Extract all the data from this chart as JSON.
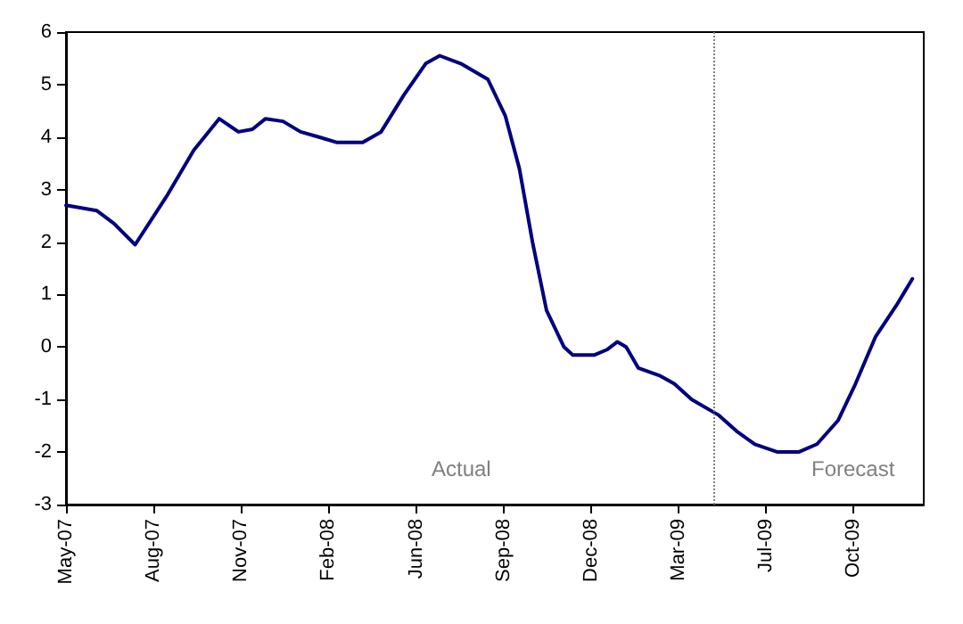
{
  "chart_data": {
    "type": "line",
    "x": [
      "2007-05-01",
      "2007-06-05",
      "2007-06-25",
      "2007-07-19",
      "2007-08-25",
      "2007-09-24",
      "2007-10-23",
      "2007-11-14",
      "2007-11-30",
      "2007-12-15",
      "2008-01-04",
      "2008-01-24",
      "2008-02-14",
      "2008-03-05",
      "2008-04-04",
      "2008-04-25",
      "2008-05-21",
      "2008-06-15",
      "2008-07-01",
      "2008-07-25",
      "2008-08-25",
      "2008-09-14",
      "2008-09-30",
      "2008-10-15",
      "2008-10-31",
      "2008-11-20",
      "2008-11-30",
      "2008-12-25",
      "2009-01-08",
      "2009-01-20",
      "2009-01-30",
      "2009-02-13",
      "2009-03-10",
      "2009-03-26",
      "2009-04-15",
      "2009-05-16",
      "2009-06-05",
      "2009-06-26",
      "2009-07-22",
      "2009-08-15",
      "2009-09-05",
      "2009-09-29",
      "2009-10-19",
      "2009-11-11",
      "2009-12-05",
      "2009-12-23"
    ],
    "series": [
      {
        "color": "#000080",
        "values": [
          2.7,
          2.6,
          2.35,
          1.95,
          2.9,
          3.75,
          4.35,
          4.1,
          4.15,
          4.35,
          4.3,
          4.1,
          4.0,
          3.9,
          3.9,
          4.1,
          4.8,
          5.4,
          5.55,
          5.4,
          5.1,
          4.4,
          3.4,
          2.0,
          0.7,
          0.0,
          -0.15,
          -0.15,
          -0.05,
          0.1,
          0.0,
          -0.4,
          -0.55,
          -0.7,
          -1.0,
          -1.3,
          -1.6,
          -1.85,
          -2.0,
          -2.0,
          -1.85,
          -1.4,
          -0.7,
          0.2,
          0.8,
          1.3
        ]
      }
    ],
    "xlim": [
      "2007-05-01",
      "2010-01-05"
    ],
    "xticks": [
      {
        "value": "2007-05-01",
        "label": "May-07"
      },
      {
        "value": "2007-08-09",
        "label": "Aug-07"
      },
      {
        "value": "2007-11-17",
        "label": "Nov-07"
      },
      {
        "value": "2008-02-25",
        "label": "Feb-08"
      },
      {
        "value": "2008-06-04",
        "label": "Jun-08"
      },
      {
        "value": "2008-09-12",
        "label": "Sep-08"
      },
      {
        "value": "2008-12-21",
        "label": "Dec-08"
      },
      {
        "value": "2009-03-31",
        "label": "Mar-09"
      },
      {
        "value": "2009-07-09",
        "label": "Jul-09"
      },
      {
        "value": "2009-10-17",
        "label": "Oct-09"
      }
    ],
    "ylim": [
      -3,
      6
    ],
    "yticks": [
      -3,
      -2,
      -1,
      0,
      1,
      2,
      3,
      4,
      5,
      6
    ],
    "ref_lines": [
      {
        "axis": "x",
        "value": "2009-05-10",
        "color": "#808080",
        "line_style": "dotted"
      }
    ],
    "annotations": [
      "Actual",
      "Forecast"
    ],
    "grid": false,
    "marker": "none",
    "line_style": "solid"
  }
}
